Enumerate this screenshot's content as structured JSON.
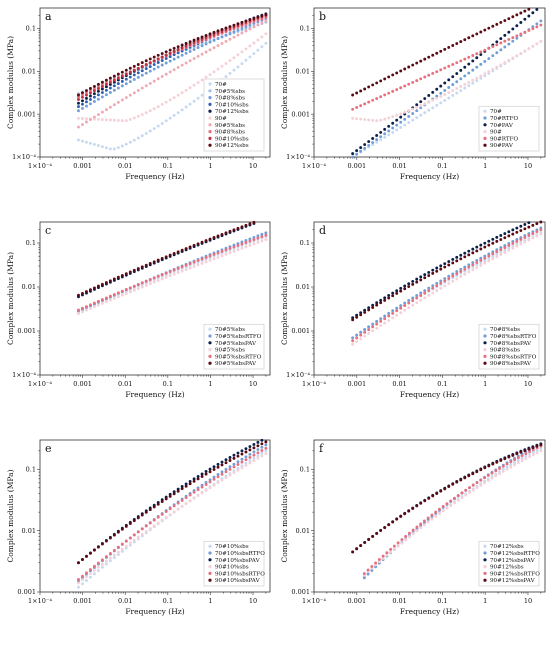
{
  "figure": {
    "x_tick_labels": [
      "1×10⁻⁴",
      "0.001",
      "0.01",
      "0.1",
      "1",
      "10"
    ],
    "xlabel": "Frequency (Hz)",
    "ylabel": "Complex modulus (MPa)"
  },
  "chart_data": [
    {
      "panel": "a",
      "type": "scatter",
      "x_scale": "log",
      "y_scale": "log",
      "xlim": [
        0.0001,
        25
      ],
      "ylim": [
        0.0001,
        0.3
      ],
      "y_tick_labels": [
        "1×10⁻⁴",
        "0.001",
        "0.01",
        "0.1"
      ],
      "xlabel": "Frequency (Hz)",
      "ylabel": "Complex modulus (MPa)",
      "legend_position": "bottom-right",
      "series": [
        {
          "name": "70#",
          "color": "#c6d9f2",
          "x_range": [
            0.0008,
            20
          ],
          "y_low": 0.00025,
          "y_high": 0.045,
          "shape": "dip",
          "dip_at": 0.005,
          "dip_value": 0.00015
        },
        {
          "name": "70#5%sbs",
          "color": "#9fbfe8",
          "x_range": [
            0.0008,
            20
          ],
          "y_low": 0.003,
          "y_high": 0.14,
          "shape": "curve",
          "bend": 0.08
        },
        {
          "name": "70#8%sbs",
          "color": "#6f9ed9",
          "x_range": [
            0.0008,
            20
          ],
          "y_low": 0.0012,
          "y_high": 0.17,
          "shape": "curve",
          "bend": 0.1
        },
        {
          "name": "70#10%sbs",
          "color": "#2e5fae",
          "x_range": [
            0.0008,
            20
          ],
          "y_low": 0.0015,
          "y_high": 0.2,
          "shape": "curve",
          "bend": 0.12
        },
        {
          "name": "70#12%sbs",
          "color": "#0c1e4a",
          "x_range": [
            0.0008,
            20
          ],
          "y_low": 0.0018,
          "y_high": 0.22,
          "shape": "curve",
          "bend": 0.14
        },
        {
          "name": "90#",
          "color": "#f5d0d6",
          "x_range": [
            0.0008,
            20
          ],
          "y_low": 0.0008,
          "y_high": 0.075,
          "shape": "dip",
          "dip_at": 0.01,
          "dip_value": 0.0007
        },
        {
          "name": "90#5%sbs",
          "color": "#f0a8b2",
          "x_range": [
            0.0008,
            20
          ],
          "y_low": 0.0005,
          "y_high": 0.15,
          "shape": "curve",
          "bend": 0.06
        },
        {
          "name": "90#8%sbs",
          "color": "#e8707e",
          "x_range": [
            0.0008,
            20
          ],
          "y_low": 0.0025,
          "y_high": 0.18,
          "shape": "curve",
          "bend": 0.1
        },
        {
          "name": "90#10%sbs",
          "color": "#c0303e",
          "x_range": [
            0.0008,
            20
          ],
          "y_low": 0.0022,
          "y_high": 0.2,
          "shape": "curve",
          "bend": 0.12
        },
        {
          "name": "90#12%sbs",
          "color": "#5a0a12",
          "x_range": [
            0.0008,
            20
          ],
          "y_low": 0.0028,
          "y_high": 0.21,
          "shape": "curve",
          "bend": 0.14
        }
      ]
    },
    {
      "panel": "b",
      "type": "scatter",
      "x_scale": "log",
      "y_scale": "log",
      "xlim": [
        0.0001,
        25
      ],
      "ylim": [
        0.0001,
        0.3
      ],
      "y_tick_labels": [
        "1×10⁻⁴",
        "0.001",
        "0.01",
        "0.1"
      ],
      "xlabel": "Frequency (Hz)",
      "ylabel": "Complex modulus (MPa)",
      "legend_position": "bottom-right",
      "series": [
        {
          "name": "70#",
          "color": "#c6d9f2",
          "x_range": [
            0.0008,
            20
          ],
          "y_low": 0.0001,
          "y_high": 0.05,
          "shape": "curve",
          "bend": 0.0
        },
        {
          "name": "70#RTFO",
          "color": "#6f9ed9",
          "x_range": [
            0.0008,
            20
          ],
          "y_low": 0.0001,
          "y_high": 0.15,
          "shape": "curve",
          "bend": 0.0
        },
        {
          "name": "70#PAV",
          "color": "#0c1e4a",
          "x_range": [
            0.0008,
            20
          ],
          "y_low": 0.00012,
          "y_high": 0.33,
          "shape": "curve",
          "bend": -0.02
        },
        {
          "name": "90#",
          "color": "#f5d0d6",
          "x_range": [
            0.0008,
            20
          ],
          "y_low": 0.0008,
          "y_high": 0.05,
          "shape": "dip",
          "dip_at": 0.003,
          "dip_value": 0.0007
        },
        {
          "name": "90#RTFO",
          "color": "#e8707e",
          "x_range": [
            0.0008,
            20
          ],
          "y_low": 0.0013,
          "y_high": 0.12,
          "shape": "curve",
          "bend": 0.0
        },
        {
          "name": "90#PAV",
          "color": "#5a0a12",
          "x_range": [
            0.0008,
            20
          ],
          "y_low": 0.0028,
          "y_high": 0.38,
          "shape": "curve",
          "bend": 0.02
        }
      ]
    },
    {
      "panel": "c",
      "type": "scatter",
      "x_scale": "log",
      "y_scale": "log",
      "xlim": [
        0.0001,
        25
      ],
      "ylim": [
        0.0001,
        0.3
      ],
      "y_tick_labels": [
        "1×10⁻⁴",
        "0.001",
        "0.01",
        "0.1"
      ],
      "xlabel": "Frequency (Hz)",
      "ylabel": "Complex modulus (MPa)",
      "legend_position": "bottom-right",
      "series": [
        {
          "name": "70#5%sbs",
          "color": "#c6d9f2",
          "x_range": [
            0.0008,
            20
          ],
          "y_low": 0.0028,
          "y_high": 0.14,
          "shape": "curve",
          "bend": 0.04
        },
        {
          "name": "70#5%sbsRTFO",
          "color": "#6f9ed9",
          "x_range": [
            0.0008,
            20
          ],
          "y_low": 0.0028,
          "y_high": 0.17,
          "shape": "curve",
          "bend": 0.05
        },
        {
          "name": "70#5%sbsPAV",
          "color": "#0c1e4a",
          "x_range": [
            0.0008,
            20
          ],
          "y_low": 0.006,
          "y_high": 0.35,
          "shape": "curve",
          "bend": 0.06
        },
        {
          "name": "90#5%sbs",
          "color": "#f5d0d6",
          "x_range": [
            0.0008,
            20
          ],
          "y_low": 0.0025,
          "y_high": 0.12,
          "shape": "curve",
          "bend": 0.04
        },
        {
          "name": "90#5%sbsRTFO",
          "color": "#e8707e",
          "x_range": [
            0.0008,
            20
          ],
          "y_low": 0.003,
          "y_high": 0.15,
          "shape": "curve",
          "bend": 0.05
        },
        {
          "name": "90#5%sbsPAV",
          "color": "#5a0a12",
          "x_range": [
            0.0008,
            20
          ],
          "y_low": 0.0065,
          "y_high": 0.37,
          "shape": "curve",
          "bend": 0.06
        }
      ]
    },
    {
      "panel": "d",
      "type": "scatter",
      "x_scale": "log",
      "y_scale": "log",
      "xlim": [
        0.0001,
        25
      ],
      "ylim": [
        0.0001,
        0.3
      ],
      "y_tick_labels": [
        "1×10⁻⁴",
        "0.001",
        "0.01",
        "0.1"
      ],
      "xlabel": "Frequency (Hz)",
      "ylabel": "Complex modulus (MPa)",
      "legend_position": "bottom-right",
      "series": [
        {
          "name": "70#8%sbs",
          "color": "#c6d9f2",
          "x_range": [
            0.0008,
            20
          ],
          "y_low": 0.0007,
          "y_high": 0.17,
          "shape": "curve",
          "bend": 0.08
        },
        {
          "name": "70#8%sbsRTFO",
          "color": "#6f9ed9",
          "x_range": [
            0.0008,
            20
          ],
          "y_low": 0.0007,
          "y_high": 0.22,
          "shape": "curve",
          "bend": 0.1
        },
        {
          "name": "70#8%sbsPAV",
          "color": "#0c1e4a",
          "x_range": [
            0.0008,
            20
          ],
          "y_low": 0.002,
          "y_high": 0.38,
          "shape": "curve",
          "bend": 0.1
        },
        {
          "name": "90#8%sbs",
          "color": "#f5d0d6",
          "x_range": [
            0.0008,
            20
          ],
          "y_low": 0.0005,
          "y_high": 0.16,
          "shape": "curve",
          "bend": 0.08
        },
        {
          "name": "90#8%sbsRTFO",
          "color": "#e8707e",
          "x_range": [
            0.0008,
            20
          ],
          "y_low": 0.0006,
          "y_high": 0.2,
          "shape": "curve",
          "bend": 0.1
        },
        {
          "name": "90#8%sbsPAV",
          "color": "#5a0a12",
          "x_range": [
            0.0008,
            20
          ],
          "y_low": 0.0018,
          "y_high": 0.3,
          "shape": "curve",
          "bend": 0.1
        }
      ]
    },
    {
      "panel": "e",
      "type": "scatter",
      "x_scale": "log",
      "y_scale": "log",
      "xlim": [
        0.0001,
        25
      ],
      "ylim": [
        0.001,
        0.3
      ],
      "y_tick_labels": [
        "0.001",
        "0.01",
        "0.1"
      ],
      "xlabel": "Frequency (Hz)",
      "ylabel": "Complex modulus (MPa)",
      "legend_position": "bottom-right",
      "series": [
        {
          "name": "70#10%sbs",
          "color": "#c6d9f2",
          "x_range": [
            0.0008,
            20
          ],
          "y_low": 0.0012,
          "y_high": 0.2,
          "shape": "curve",
          "bend": 0.08
        },
        {
          "name": "70#10%sbsRTFO",
          "color": "#6f9ed9",
          "x_range": [
            0.0008,
            20
          ],
          "y_low": 0.0015,
          "y_high": 0.25,
          "shape": "curve",
          "bend": 0.1
        },
        {
          "name": "70#10%sbsPAV",
          "color": "#0c1e4a",
          "x_range": [
            0.0008,
            20
          ],
          "y_low": 0.003,
          "y_high": 0.32,
          "shape": "curve",
          "bend": 0.12
        },
        {
          "name": "90#10%sbs",
          "color": "#f5d0d6",
          "x_range": [
            0.0008,
            20
          ],
          "y_low": 0.0014,
          "y_high": 0.18,
          "shape": "curve",
          "bend": 0.08
        },
        {
          "name": "90#10%sbsRTFO",
          "color": "#e8707e",
          "x_range": [
            0.0008,
            20
          ],
          "y_low": 0.0016,
          "y_high": 0.22,
          "shape": "curve",
          "bend": 0.1
        },
        {
          "name": "90#10%sbsPAV",
          "color": "#5a0a12",
          "x_range": [
            0.0008,
            20
          ],
          "y_low": 0.003,
          "y_high": 0.28,
          "shape": "curve",
          "bend": 0.12
        }
      ]
    },
    {
      "panel": "f",
      "type": "scatter",
      "x_scale": "log",
      "y_scale": "log",
      "xlim": [
        0.0001,
        25
      ],
      "ylim": [
        0.001,
        0.3
      ],
      "y_tick_labels": [
        "0.001",
        "0.01",
        "0.1"
      ],
      "xlabel": "Frequency (Hz)",
      "ylabel": "Complex modulus (MPa)",
      "legend_position": "bottom-right",
      "series": [
        {
          "name": "70#12%sbs",
          "color": "#c6d9f2",
          "x_range": [
            0.0015,
            20
          ],
          "y_low": 0.0018,
          "y_high": 0.22,
          "shape": "curve",
          "bend": 0.14
        },
        {
          "name": "70#12%sbsRTFO",
          "color": "#6f9ed9",
          "x_range": [
            0.0015,
            20
          ],
          "y_low": 0.0017,
          "y_high": 0.26,
          "shape": "curve",
          "bend": 0.16
        },
        {
          "name": "70#12%sbsPAV",
          "color": "#0c1e4a",
          "x_range": [
            0.0008,
            20
          ],
          "y_low": 0.0045,
          "y_high": 0.26,
          "shape": "curve",
          "bend": 0.2
        },
        {
          "name": "90#12%sbs",
          "color": "#f5d0d6",
          "x_range": [
            0.0015,
            20
          ],
          "y_low": 0.0019,
          "y_high": 0.2,
          "shape": "curve",
          "bend": 0.14
        },
        {
          "name": "90#12%sbsRTFO",
          "color": "#e8707e",
          "x_range": [
            0.0015,
            20
          ],
          "y_low": 0.002,
          "y_high": 0.24,
          "shape": "curve",
          "bend": 0.16
        },
        {
          "name": "90#12%sbsPAV",
          "color": "#5a0a12",
          "x_range": [
            0.0008,
            20
          ],
          "y_low": 0.0045,
          "y_high": 0.25,
          "shape": "curve",
          "bend": 0.2
        }
      ]
    }
  ]
}
